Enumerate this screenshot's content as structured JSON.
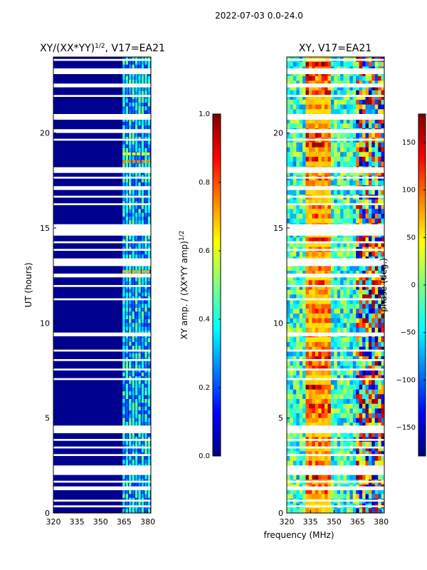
{
  "figure_title": "2022-07-03 0.0-24.0",
  "x_label": "frequency (MHz)",
  "chart_data": [
    {
      "type": "heatmap",
      "title_prefix": "XY/(XX*YY)",
      "title_superscript": "1/2",
      "title_suffix": ", V17=EA21",
      "ylabel": "UT (hours)",
      "xlim": [
        320,
        382
      ],
      "ylim": [
        0,
        24
      ],
      "xticks": [
        320,
        335,
        350,
        365,
        380
      ],
      "yticks": [
        0,
        5,
        10,
        15,
        20
      ],
      "colorbar": {
        "label": "XY amp. / (XX*YY amp)",
        "label_superscript": "1/2",
        "range": [
          0.0,
          1.0
        ],
        "ticks": [
          "0.0",
          "0.2",
          "0.4",
          "0.6",
          "0.8",
          "1.0"
        ],
        "tick_values": [
          0.0,
          0.2,
          0.4,
          0.6,
          0.8,
          1.0
        ]
      },
      "blank_hour_ranges": [
        [
          0.3,
          0.4
        ],
        [
          0.6,
          0.7
        ],
        [
          1.2,
          1.4
        ],
        [
          1.6,
          1.7
        ],
        [
          2.0,
          2.5
        ],
        [
          3.0,
          3.1
        ],
        [
          3.4,
          3.5
        ],
        [
          3.8,
          3.9
        ],
        [
          4.2,
          4.6
        ],
        [
          7.0,
          7.1
        ],
        [
          7.5,
          7.6
        ],
        [
          8.0,
          8.1
        ],
        [
          8.5,
          8.6
        ],
        [
          9.3,
          9.5
        ],
        [
          11.2,
          11.3
        ],
        [
          11.9,
          12.0
        ],
        [
          12.4,
          12.6
        ],
        [
          13.0,
          13.4
        ],
        [
          13.8,
          13.9
        ],
        [
          14.2,
          14.3
        ],
        [
          14.6,
          15.2
        ],
        [
          16.2,
          16.3
        ],
        [
          16.6,
          16.7
        ],
        [
          17.0,
          17.2
        ],
        [
          17.6,
          17.7
        ],
        [
          17.9,
          18.2
        ],
        [
          19.6,
          19.7
        ],
        [
          20.0,
          20.2
        ],
        [
          20.7,
          21.0
        ],
        [
          21.9,
          22.0
        ],
        [
          22.4,
          22.6
        ],
        [
          23.1,
          23.4
        ],
        [
          23.8,
          23.9
        ]
      ]
    },
    {
      "type": "heatmap",
      "title": "XY, V17=EA21",
      "ylabel": "",
      "xlim": [
        320,
        382
      ],
      "ylim": [
        0,
        24
      ],
      "xticks": [
        320,
        335,
        350,
        365,
        380
      ],
      "yticks": [
        0,
        5,
        10,
        15,
        20
      ],
      "colorbar": {
        "label": "phase (deg.)",
        "range": [
          -180,
          180
        ],
        "ticks": [
          "150",
          "100",
          "50",
          "0",
          "−50",
          "−100",
          "−150"
        ],
        "tick_values": [
          150,
          100,
          50,
          0,
          -50,
          -100,
          -150
        ]
      },
      "blank_hour_ranges": [
        [
          0.3,
          0.4
        ],
        [
          0.6,
          0.7
        ],
        [
          1.2,
          1.4
        ],
        [
          1.6,
          1.7
        ],
        [
          2.0,
          2.5
        ],
        [
          3.0,
          3.1
        ],
        [
          3.4,
          3.5
        ],
        [
          3.8,
          3.9
        ],
        [
          4.2,
          4.6
        ],
        [
          7.0,
          7.1
        ],
        [
          7.5,
          7.6
        ],
        [
          8.0,
          8.1
        ],
        [
          8.5,
          8.6
        ],
        [
          9.3,
          9.5
        ],
        [
          11.2,
          11.3
        ],
        [
          11.9,
          12.0
        ],
        [
          12.4,
          12.6
        ],
        [
          13.0,
          13.4
        ],
        [
          13.8,
          13.9
        ],
        [
          14.2,
          14.3
        ],
        [
          14.6,
          15.2
        ],
        [
          16.2,
          16.3
        ],
        [
          16.6,
          16.7
        ],
        [
          17.0,
          17.2
        ],
        [
          17.6,
          17.7
        ],
        [
          17.9,
          18.2
        ],
        [
          19.6,
          19.7
        ],
        [
          20.0,
          20.2
        ],
        [
          20.7,
          21.0
        ],
        [
          21.9,
          22.0
        ],
        [
          22.4,
          22.6
        ],
        [
          23.1,
          23.4
        ],
        [
          23.8,
          23.9
        ]
      ]
    }
  ]
}
